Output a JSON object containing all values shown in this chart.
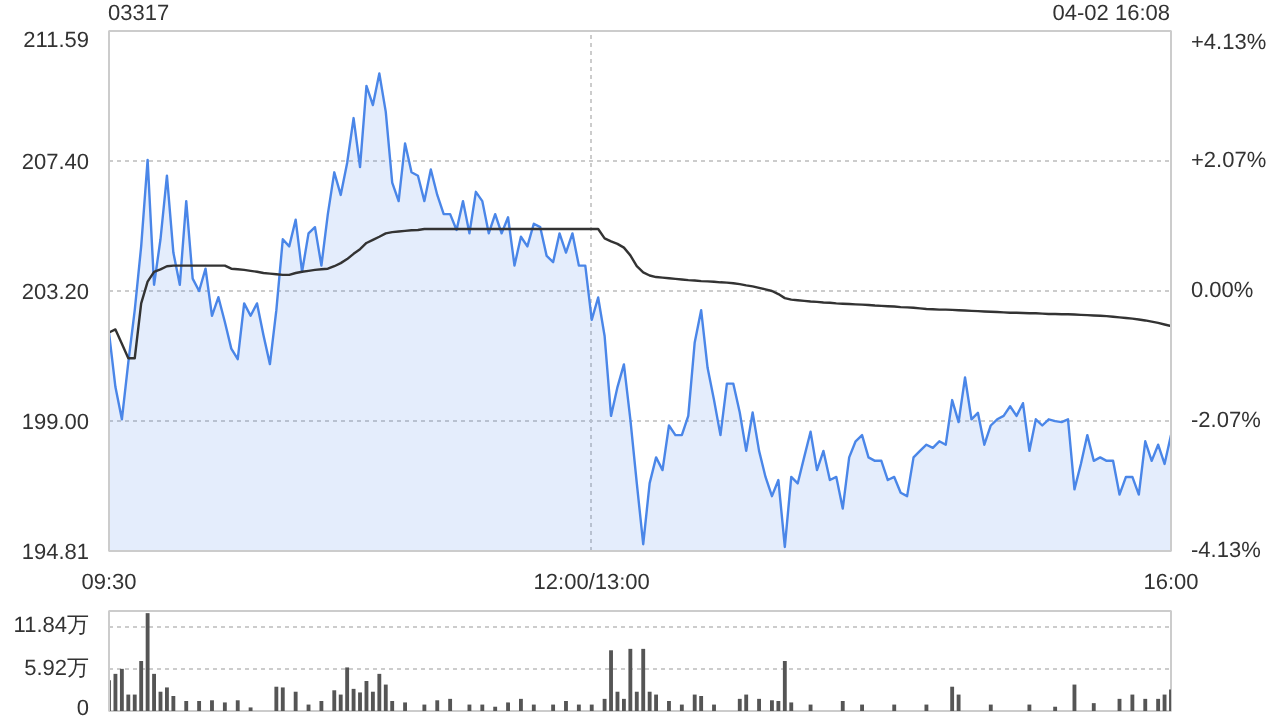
{
  "chart_data": [
    {
      "type": "line",
      "title": "03317",
      "annotations": [
        "04-02 16:08"
      ],
      "categories": [
        "09:30",
        null,
        null,
        null,
        null,
        null,
        null,
        null,
        null,
        null,
        null,
        null,
        null,
        null,
        null,
        null,
        null,
        null,
        null,
        null,
        null,
        null,
        null,
        null,
        null,
        null,
        null,
        null,
        null,
        null,
        null,
        null,
        null,
        null,
        null,
        null,
        null,
        null,
        null,
        null,
        null,
        null,
        null,
        null,
        null,
        null,
        null,
        null,
        null,
        null,
        null,
        null,
        null,
        null,
        null,
        null,
        null,
        null,
        null,
        null,
        null,
        null,
        null,
        null,
        null,
        null,
        null,
        null,
        null,
        null,
        null,
        null,
        null,
        null,
        null,
        "12:00/13:00",
        null,
        null,
        null,
        null,
        null,
        null,
        null,
        null,
        null,
        null,
        null,
        null,
        null,
        null,
        null,
        null,
        null,
        null,
        null,
        null,
        null,
        null,
        null,
        null,
        null,
        null,
        null,
        null,
        null,
        null,
        null,
        null,
        null,
        null,
        null,
        null,
        null,
        null,
        null,
        null,
        null,
        null,
        null,
        null,
        null,
        null,
        null,
        null,
        null,
        null,
        null,
        null,
        null,
        null,
        null,
        null,
        null,
        null,
        null,
        null,
        null,
        null,
        null,
        null,
        null,
        null,
        null,
        null,
        null,
        null,
        null,
        null,
        null,
        null,
        null,
        null,
        null,
        null,
        null,
        null,
        null,
        null,
        null,
        null,
        null,
        null,
        null,
        null,
        null,
        "16:00"
      ],
      "ylim": [
        194.81,
        211.59
      ],
      "yticks": [
        {
          "value": 194.81,
          "label": "194.81"
        },
        {
          "value": 199.0,
          "label": "199.00"
        },
        {
          "value": 203.2,
          "label": "203.20"
        },
        {
          "value": 207.4,
          "label": "207.40"
        },
        {
          "value": 211.59,
          "label": "211.59"
        }
      ],
      "y2lim": [
        -4.13,
        4.13
      ],
      "y2ticks": [
        {
          "value": -4.13,
          "label": "-4.13%"
        },
        {
          "value": -2.07,
          "label": "-2.07%"
        },
        {
          "value": 0,
          "label": "0.00%"
        },
        {
          "value": 2.07,
          "label": "+2.07%"
        },
        {
          "value": 4.13,
          "label": "+4.13%"
        }
      ],
      "grid": true,
      "series": [
        {
          "type": "area",
          "color": "#4a86e8",
          "values": [
            201.86,
            200.1,
            199.06,
            200.9,
            202.58,
            204.64,
            207.43,
            203.4,
            204.87,
            206.92,
            204.44,
            203.4,
            206.1,
            203.6,
            203.2,
            203.92,
            202.4,
            203.0,
            202.2,
            201.34,
            201.0,
            202.8,
            202.4,
            202.8,
            201.77,
            200.84,
            202.58,
            204.87,
            204.64,
            205.5,
            203.82,
            205.06,
            205.26,
            204.02,
            205.68,
            207.03,
            206.3,
            207.33,
            208.78,
            207.2,
            209.82,
            209.2,
            210.22,
            208.98,
            206.7,
            206.1,
            207.96,
            207.03,
            206.92,
            206.1,
            207.12,
            206.3,
            205.68,
            205.68,
            205.17,
            206.1,
            205.06,
            206.4,
            206.1,
            205.06,
            205.68,
            205.06,
            205.58,
            204.02,
            204.95,
            204.64,
            205.37,
            205.26,
            204.33,
            204.13,
            205.06,
            204.44,
            205.06,
            204.02,
            204.02,
            202.27,
            202.99,
            201.75,
            199.17,
            200.1,
            200.83,
            199.06,
            197.0,
            195.03,
            197.0,
            197.83,
            197.42,
            198.86,
            198.55,
            198.55,
            199.17,
            201.54,
            202.58,
            200.72,
            199.68,
            198.55,
            200.21,
            200.21,
            199.28,
            198.04,
            199.28,
            198.04,
            197.2,
            196.58,
            197.1,
            194.94,
            197.2,
            196.99,
            197.83,
            198.66,
            197.42,
            198.04,
            197.1,
            197.2,
            196.18,
            197.83,
            198.35,
            198.55,
            197.83,
            197.72,
            197.72,
            197.1,
            197.2,
            196.69,
            196.58,
            197.83,
            198.04,
            198.24,
            198.14,
            198.35,
            198.24,
            199.68,
            198.97,
            200.41,
            199.06,
            199.27,
            198.24,
            198.86,
            199.06,
            199.17,
            199.48,
            199.17,
            199.58,
            198.04,
            199.06,
            198.86,
            199.06,
            199.0,
            198.97,
            199.06,
            196.8,
            197.62,
            198.55,
            197.72,
            197.83,
            197.72,
            197.72,
            196.63,
            197.2,
            197.2,
            196.63,
            198.35,
            197.72,
            198.24,
            197.62,
            198.55
          ]
        },
        {
          "type": "line",
          "color": "#333333",
          "values": [
            201.86,
            201.96,
            201.5,
            201.03,
            201.03,
            202.8,
            203.5,
            203.82,
            203.9,
            204.0,
            204.02,
            204.02,
            204.02,
            204.02,
            204.02,
            204.02,
            204.02,
            204.02,
            204.02,
            203.92,
            203.9,
            203.88,
            203.85,
            203.82,
            203.78,
            203.76,
            203.74,
            203.72,
            203.72,
            203.78,
            203.82,
            203.85,
            203.88,
            203.9,
            203.92,
            204.0,
            204.1,
            204.23,
            204.4,
            204.55,
            204.75,
            204.85,
            204.95,
            205.06,
            205.1,
            205.12,
            205.14,
            205.16,
            205.17,
            205.2,
            205.2,
            205.2,
            205.2,
            205.2,
            205.2,
            205.2,
            205.2,
            205.2,
            205.2,
            205.2,
            205.2,
            205.2,
            205.2,
            205.2,
            205.2,
            205.2,
            205.2,
            205.2,
            205.2,
            205.2,
            205.2,
            205.2,
            205.2,
            205.2,
            205.2,
            205.2,
            205.2,
            204.9,
            204.8,
            204.72,
            204.6,
            204.35,
            204.0,
            203.8,
            203.7,
            203.65,
            203.63,
            203.61,
            203.59,
            203.57,
            203.55,
            203.54,
            203.52,
            203.51,
            203.5,
            203.48,
            203.47,
            203.45,
            203.42,
            203.38,
            203.35,
            203.3,
            203.25,
            203.2,
            203.1,
            202.97,
            202.92,
            202.9,
            202.88,
            202.86,
            202.85,
            202.83,
            202.82,
            202.8,
            202.79,
            202.78,
            202.77,
            202.76,
            202.75,
            202.73,
            202.72,
            202.71,
            202.7,
            202.68,
            202.67,
            202.66,
            202.64,
            202.62,
            202.61,
            202.6,
            202.6,
            202.59,
            202.58,
            202.57,
            202.56,
            202.55,
            202.54,
            202.53,
            202.52,
            202.51,
            202.5,
            202.5,
            202.49,
            202.48,
            202.48,
            202.47,
            202.46,
            202.46,
            202.45,
            202.45,
            202.44,
            202.43,
            202.42,
            202.41,
            202.4,
            202.39,
            202.37,
            202.35,
            202.33,
            202.31,
            202.28,
            202.25,
            202.21,
            202.17,
            202.12,
            202.07
          ]
        }
      ]
    },
    {
      "type": "bar",
      "color": "#555555",
      "ylim": [
        0,
        14
      ],
      "yticks": [
        {
          "value": 0,
          "label": "0"
        },
        {
          "value": 5.92,
          "label": "5.92万"
        },
        {
          "value": 11.84,
          "label": "11.84万"
        }
      ],
      "tick_labels": "y",
      "grid": "y",
      "categories": [
        null,
        null,
        null,
        null,
        null,
        null,
        null,
        null,
        null,
        null,
        null,
        null,
        null,
        null,
        null,
        null,
        null,
        null,
        null,
        null,
        null,
        null,
        null,
        null,
        null,
        null,
        null,
        null,
        null,
        null,
        null,
        null,
        null,
        null,
        null,
        null,
        null,
        null,
        null,
        null,
        null,
        null,
        null,
        null,
        null,
        null,
        null,
        null,
        null,
        null,
        null,
        null,
        null,
        null,
        null,
        null,
        null,
        null,
        null,
        null,
        null,
        null,
        null,
        null,
        null,
        null,
        null,
        null,
        null,
        null,
        null,
        null,
        null,
        null,
        null,
        null,
        null,
        null,
        null,
        null,
        null,
        null,
        null,
        null,
        null,
        null,
        null,
        null,
        null,
        null,
        null,
        null,
        null,
        null,
        null,
        null,
        null,
        null,
        null,
        null,
        null,
        null,
        null,
        null,
        null,
        null,
        null,
        null,
        null,
        null,
        null,
        null,
        null,
        null,
        null,
        null,
        null,
        null,
        null,
        null,
        null,
        null,
        null,
        null,
        null,
        null,
        null,
        null,
        null,
        null,
        null,
        null,
        null,
        null,
        null,
        null,
        null,
        null,
        null,
        null,
        null,
        null,
        null,
        null,
        null,
        null,
        null,
        null,
        null,
        null,
        null,
        null,
        null,
        null,
        null,
        null,
        null,
        null,
        null,
        null,
        null,
        null,
        null,
        null,
        null,
        null
      ],
      "values": [
        4.3,
        5.2,
        5.9,
        2.3,
        2.3,
        7.0,
        13.7,
        5.2,
        2.7,
        3.3,
        2.1,
        null,
        1.4,
        null,
        1.4,
        null,
        1.5,
        null,
        1.2,
        null,
        1.5,
        null,
        0.5,
        null,
        null,
        null,
        3.4,
        3.3,
        null,
        2.7,
        null,
        0.9,
        null,
        1.4,
        null,
        2.9,
        2.3,
        6.1,
        3.1,
        2.6,
        4.2,
        2.7,
        5.2,
        3.7,
        1.4,
        null,
        1.2,
        null,
        null,
        0.9,
        null,
        1.5,
        null,
        1.7,
        null,
        null,
        0.9,
        null,
        0.9,
        null,
        0.6,
        null,
        1.2,
        null,
        1.7,
        null,
        0.9,
        null,
        null,
        0.9,
        null,
        1.4,
        null,
        0.9,
        null,
        0.9,
        null,
        1.7,
        8.5,
        2.7,
        1.7,
        8.7,
        2.7,
        8.7,
        2.7,
        2.3,
        null,
        1.4,
        null,
        0.9,
        null,
        2.3,
        2.1,
        null,
        0.9,
        null,
        null,
        null,
        1.7,
        2.3,
        null,
        1.7,
        null,
        1.5,
        1.4,
        7.0,
        1.2,
        null,
        null,
        0.9,
        null,
        null,
        null,
        null,
        1.4,
        null,
        null,
        0.9,
        null,
        null,
        null,
        null,
        0.9,
        null,
        null,
        null,
        null,
        0.9,
        null,
        null,
        null,
        3.4,
        2.3,
        null,
        null,
        null,
        null,
        0.9,
        null,
        null,
        null,
        null,
        null,
        0.9,
        null,
        null,
        null,
        0.6,
        null,
        null,
        3.7,
        null,
        null,
        1.1,
        null,
        null,
        null,
        1.7,
        null,
        2.3,
        null,
        1.7,
        null,
        1.7,
        2.3,
        3.0
      ]
    }
  ]
}
